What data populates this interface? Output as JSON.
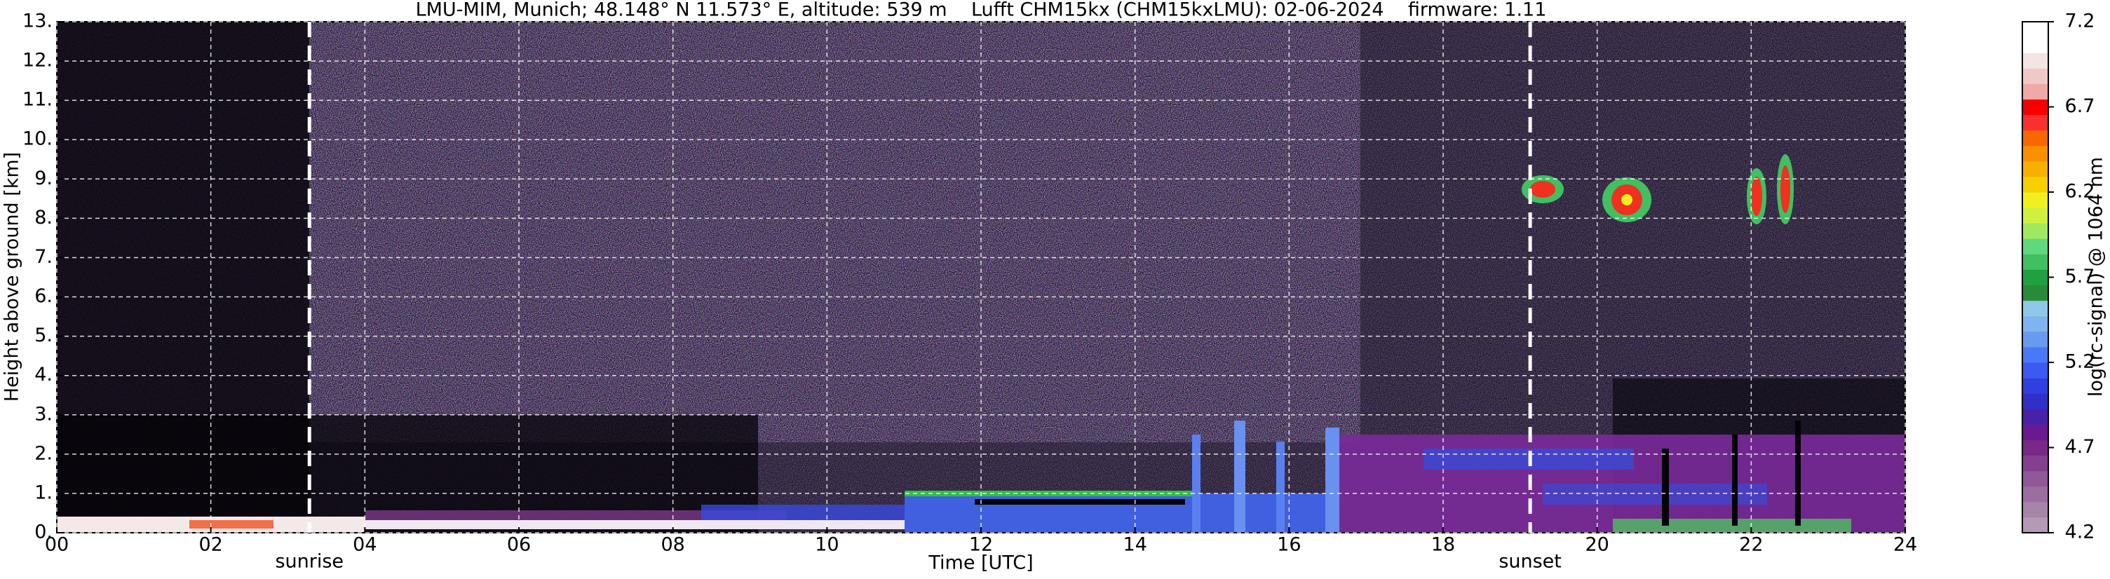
{
  "chart_data": {
    "type": "heatmap",
    "title": "LMU-MIM, Munich; 48.148° N 11.573° E, altitude: 539 m    Lufft CHM15kx (CHM15kxLMU): 02-06-2024    firmware: 1.11",
    "xlabel": "Time [UTC]",
    "ylabel": "Height above ground [km]",
    "xlim": [
      0,
      24
    ],
    "xticks": [
      {
        "value": 0,
        "label": "00"
      },
      {
        "value": 2,
        "label": "02"
      },
      {
        "value": 4,
        "label": "04"
      },
      {
        "value": 6,
        "label": "06"
      },
      {
        "value": 8,
        "label": "08"
      },
      {
        "value": 10,
        "label": "10"
      },
      {
        "value": 12,
        "label": "12"
      },
      {
        "value": 14,
        "label": "14"
      },
      {
        "value": 16,
        "label": "16"
      },
      {
        "value": 18,
        "label": "18"
      },
      {
        "value": 20,
        "label": "20"
      },
      {
        "value": 22,
        "label": "22"
      },
      {
        "value": 24,
        "label": "24"
      }
    ],
    "ylim": [
      0,
      13
    ],
    "yticks": [
      {
        "value": 0,
        "label": "0."
      },
      {
        "value": 1,
        "label": "1."
      },
      {
        "value": 2,
        "label": "2."
      },
      {
        "value": 3,
        "label": "3."
      },
      {
        "value": 4,
        "label": "4."
      },
      {
        "value": 5,
        "label": "5."
      },
      {
        "value": 6,
        "label": "6."
      },
      {
        "value": 7,
        "label": "7."
      },
      {
        "value": 8,
        "label": "8."
      },
      {
        "value": 9,
        "label": "9."
      },
      {
        "value": 10,
        "label": "10."
      },
      {
        "value": 11,
        "label": "11."
      },
      {
        "value": 12,
        "label": "12."
      },
      {
        "value": 13,
        "label": "13."
      }
    ],
    "grid": true,
    "annotations": [
      {
        "text": "sunrise",
        "x": 3.28
      },
      {
        "text": "sunset",
        "x": 19.13
      }
    ],
    "colorbar": {
      "label": "log(rc-signal) @ 1064 nm",
      "lim": [
        4.2,
        7.2
      ],
      "ticks": [
        4.2,
        4.7,
        5.2,
        5.7,
        6.2,
        6.7,
        7.2
      ],
      "colors": [
        "#b49ab4",
        "#a884a8",
        "#9c6ea0",
        "#905898",
        "#844090",
        "#782888",
        "#6a1a90",
        "#4a20a8",
        "#3030c8",
        "#3040e0",
        "#3a5af0",
        "#4a78f8",
        "#6a9af0",
        "#80b4f0",
        "#90c8e8",
        "#2a8a3a",
        "#20a040",
        "#40c060",
        "#60d880",
        "#a0e860",
        "#d0f040",
        "#f0f020",
        "#f8d000",
        "#f8b000",
        "#f89000",
        "#f86800",
        "#f83030",
        "#f80000",
        "#f0a8a8",
        "#f0c8c8",
        "#f4e4e4",
        "#ffffff",
        "#ffffff"
      ]
    }
  }
}
